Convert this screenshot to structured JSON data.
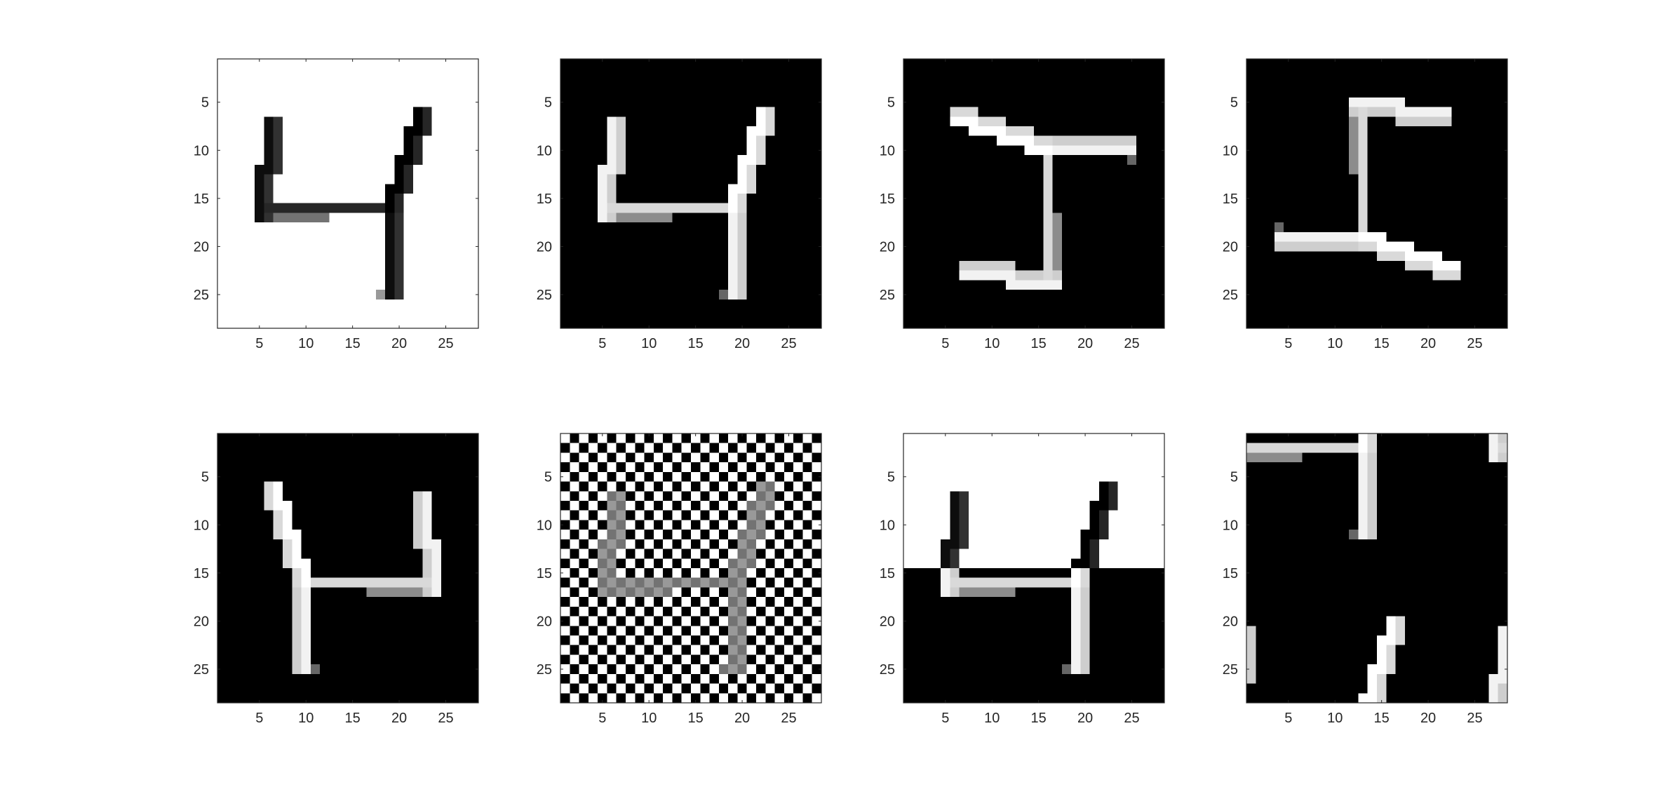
{
  "chart_data": [
    {
      "type": "heatmap",
      "variant": "inverted",
      "xticks": [
        5,
        10,
        15,
        20,
        25
      ],
      "yticks": [
        5,
        10,
        15,
        20,
        25
      ],
      "xlim": [
        0.5,
        28.5
      ],
      "ylim": [
        0.5,
        28.5
      ],
      "colormap": "gray",
      "grid": false
    },
    {
      "type": "heatmap",
      "variant": "original",
      "xticks": [
        5,
        10,
        15,
        20,
        25
      ],
      "yticks": [
        5,
        10,
        15,
        20,
        25
      ],
      "xlim": [
        0.5,
        28.5
      ],
      "ylim": [
        0.5,
        28.5
      ],
      "colormap": "gray",
      "grid": false
    },
    {
      "type": "heatmap",
      "variant": "rotated-90-ccw",
      "xticks": [
        5,
        10,
        15,
        20,
        25
      ],
      "yticks": [
        5,
        10,
        15,
        20,
        25
      ],
      "xlim": [
        0.5,
        28.5
      ],
      "ylim": [
        0.5,
        28.5
      ],
      "colormap": "gray",
      "grid": false
    },
    {
      "type": "heatmap",
      "variant": "rotated-90-cw",
      "xticks": [
        5,
        10,
        15,
        20,
        25
      ],
      "yticks": [
        5,
        10,
        15,
        20,
        25
      ],
      "xlim": [
        0.5,
        28.5
      ],
      "ylim": [
        0.5,
        28.5
      ],
      "colormap": "gray",
      "grid": false
    },
    {
      "type": "heatmap",
      "variant": "mirrored",
      "xticks": [
        5,
        10,
        15,
        20,
        25
      ],
      "yticks": [
        5,
        10,
        15,
        20,
        25
      ],
      "xlim": [
        0.5,
        28.5
      ],
      "ylim": [
        0.5,
        28.5
      ],
      "colormap": "gray",
      "grid": false
    },
    {
      "type": "heatmap",
      "variant": "checkerboard-overlay",
      "xticks": [
        5,
        10,
        15,
        20,
        25
      ],
      "yticks": [
        5,
        10,
        15,
        20,
        25
      ],
      "xlim": [
        0.5,
        28.5
      ],
      "ylim": [
        0.5,
        28.5
      ],
      "colormap": "gray",
      "grid": false
    },
    {
      "type": "heatmap",
      "variant": "top-half-inverted",
      "xticks": [
        5,
        10,
        15,
        20,
        25
      ],
      "yticks": [
        5,
        10,
        15,
        20,
        25
      ],
      "xlim": [
        0.5,
        28.5
      ],
      "ylim": [
        0.5,
        28.5
      ],
      "colormap": "gray",
      "grid": false
    },
    {
      "type": "heatmap",
      "variant": "circular-shift-vertical",
      "xticks": [
        5,
        10,
        15,
        20,
        25
      ],
      "yticks": [
        5,
        10,
        15,
        20,
        25
      ],
      "xlim": [
        0.5,
        28.5
      ],
      "ylim": [
        0.5,
        28.5
      ],
      "colormap": "gray",
      "grid": false
    }
  ]
}
